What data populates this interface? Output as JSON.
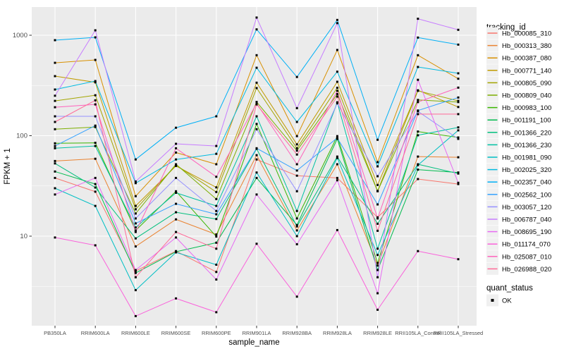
{
  "chart_data": {
    "type": "line",
    "title": "",
    "xlabel": "sample_name",
    "ylabel": "FPKM + 1",
    "x_scale": "discrete",
    "y_scale": "log10",
    "y_ticks": [
      10,
      100,
      1000
    ],
    "y_tick_labels": [
      "10",
      "100",
      "1000"
    ],
    "y_minor_ticks": [
      3.1623,
      31.623,
      316.23
    ],
    "ylim": [
      1.28,
      1906
    ],
    "grid": "on",
    "legend_position": "right",
    "panel_bg": "#EBEBEB",
    "grid_color": "#FFFFFF",
    "point_shape": "filled-square",
    "point_color": "#000000",
    "categories": [
      "PB350LA",
      "RRIM600LA",
      "RRIM600LE",
      "RRIM600SE",
      "RRIM600PE",
      "RRIM901LA",
      "RRIM928BA",
      "RRIM928LA",
      "RRIM928LE",
      "RRII105LA_Control",
      "RRII105LA_Stressed"
    ],
    "series": [
      {
        "name": "Hb_000085_310",
        "color": "#F8766D",
        "values": [
          38,
          27.7,
          4.5,
          7.1,
          4.4,
          58,
          40,
          38,
          15.4,
          37,
          33
        ]
      },
      {
        "name": "Hb_000313_380",
        "color": "#EA8331",
        "values": [
          56,
          59,
          7.9,
          14.7,
          10.4,
          64,
          11.4,
          52,
          5.1,
          62,
          61
        ]
      },
      {
        "name": "Hb_000387_080",
        "color": "#D89000",
        "values": [
          532,
          568,
          25,
          68,
          52,
          633,
          99,
          713,
          54.6,
          633,
          369
        ]
      },
      {
        "name": "Hb_000771_140",
        "color": "#C09B00",
        "values": [
          392,
          340,
          20,
          50,
          30.6,
          337,
          82,
          344,
          32.3,
          283,
          193
        ]
      },
      {
        "name": "Hb_000805_090",
        "color": "#A3A500",
        "values": [
          222,
          253,
          18.5,
          51,
          27.5,
          298,
          75,
          300,
          28.2,
          280,
          222
        ]
      },
      {
        "name": "Hb_000809_040",
        "color": "#7CAE00",
        "values": [
          116,
          122,
          16.8,
          52,
          23.4,
          217,
          71,
          260,
          28,
          227,
          216
        ]
      },
      {
        "name": "Hb_000983_100",
        "color": "#39B600",
        "values": [
          84,
          85,
          11.4,
          28,
          9.9,
          131,
          15,
          99,
          5.4,
          110,
          96
        ]
      },
      {
        "name": "Hb_001191_100",
        "color": "#00BB4E",
        "values": [
          44,
          33,
          4.3,
          7,
          8.6,
          38,
          12.9,
          93,
          4.6,
          46,
          43
        ]
      },
      {
        "name": "Hb_001366_220",
        "color": "#00BF7D",
        "values": [
          53,
          30.5,
          9.5,
          17.3,
          14.8,
          74,
          12.5,
          62,
          13.3,
          52,
          42
        ]
      },
      {
        "name": "Hb_001366_230",
        "color": "#00C1A3",
        "values": [
          75,
          79,
          12.2,
          27,
          20,
          156,
          17.8,
          215,
          7.5,
          101,
          121
        ]
      },
      {
        "name": "Hb_001981_090",
        "color": "#00BFC4",
        "values": [
          30,
          20,
          2.9,
          6.9,
          5.2,
          43,
          10,
          60,
          6.5,
          51,
          113
        ]
      },
      {
        "name": "Hb_002025_320",
        "color": "#00BAE0",
        "values": [
          288,
          350,
          33.7,
          58,
          66,
          475,
          137,
          434,
          49.5,
          483,
          418
        ]
      },
      {
        "name": "Hb_002357_040",
        "color": "#00B0F6",
        "values": [
          893,
          953,
          58,
          120,
          156,
          1143,
          384,
          1420,
          91,
          948,
          807
        ]
      },
      {
        "name": "Hb_002562_100",
        "color": "#35A2FF",
        "values": [
          79,
          126,
          13.4,
          21,
          16.5,
          75,
          45,
          95,
          20.7,
          178,
          240
        ]
      },
      {
        "name": "Hb_003057_120",
        "color": "#9590FF",
        "values": [
          156,
          156,
          15,
          38,
          17.8,
          116,
          28,
          210,
          39.5,
          175,
          93
        ]
      },
      {
        "name": "Hb_006787_040",
        "color": "#C77CFF",
        "values": [
          250,
          1120,
          35,
          83,
          79,
          1500,
          188,
          1320,
          3.9,
          1460,
          1133
        ]
      },
      {
        "name": "Hb_008695_190",
        "color": "#E76BF3",
        "values": [
          26,
          38,
          4.6,
          9.7,
          3.7,
          26,
          8.3,
          36,
          2.7,
          360,
          34
        ]
      },
      {
        "name": "Hb_011174_070",
        "color": "#FA62DB",
        "values": [
          9.7,
          8.1,
          1.6,
          2.4,
          1.75,
          8.4,
          2.5,
          11.5,
          1.85,
          7.1,
          5.9
        ]
      },
      {
        "name": "Hb_025087_010",
        "color": "#FF62BC",
        "values": [
          192,
          205,
          11,
          75,
          39,
          210,
          52,
          280,
          15,
          216,
          301
        ]
      },
      {
        "name": "Hb_026988_020",
        "color": "#FF6A98",
        "values": [
          137,
          225,
          3.9,
          11,
          7.5,
          205,
          65,
          245,
          11.3,
          164,
          164
        ]
      }
    ],
    "legend": {
      "color_title": "tracking_id",
      "shape_title": "quant_status",
      "shape_items": [
        {
          "label": "OK",
          "shape": "filled-square",
          "color": "#000000"
        }
      ],
      "key_bg": "#F0F0F0"
    }
  },
  "text_colors": {
    "tick_label": "#4D4D4D",
    "axis_title": "#000000",
    "legend_text": "#000000"
  }
}
